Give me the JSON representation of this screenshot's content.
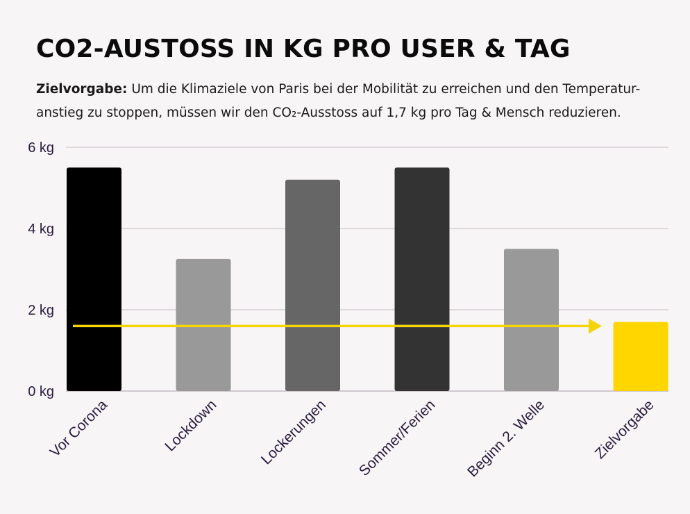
{
  "title": "CO2-AUSTOSS IN KG PRO USER & TAG",
  "subtitle": {
    "lead": "Zielvorgabe:",
    "text_line1": " Um die Klimaziele von Paris bei der Mobilität zu erreichen und den Temperatur-",
    "text_line2": "anstieg zu stoppen, müssen wir den CO₂-Ausstoss auf 1,7 kg pro Tag & Mensch reduzieren."
  },
  "chart_data": {
    "type": "bar",
    "categories": [
      "Vor Corona",
      "Lockdown",
      "Lockerungen",
      "Sommer/Ferien",
      "Beginn 2. Welle",
      "Zielvorgabe"
    ],
    "values": [
      5.5,
      3.25,
      5.2,
      5.5,
      3.5,
      1.7
    ],
    "bar_colors": [
      "#000000",
      "#999999",
      "#666666",
      "#333333",
      "#999999",
      "#ffd600"
    ],
    "ylim": [
      0,
      6
    ],
    "yticks": [
      0,
      2,
      4,
      6
    ],
    "ytick_labels": [
      "0  kg",
      "2  kg",
      "4  kg",
      "6  kg"
    ],
    "grid": true,
    "target_arrow": {
      "value": 1.6,
      "color": "#f5d50a"
    }
  },
  "colors": {
    "tick_text": "#2a1a3c",
    "grid": "#cfc6cf",
    "axis": "#b8aeb8"
  }
}
